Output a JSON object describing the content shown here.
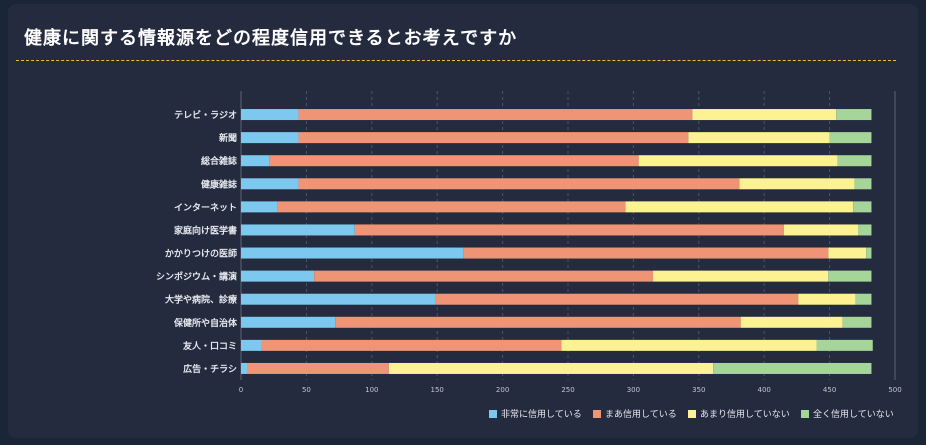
{
  "title": "健康に関する情報源をどの程度信用できるとお考えですか",
  "colors": {
    "panel": "#252b3f",
    "divider": "#e3c03c",
    "series": [
      "#7cc8ef",
      "#ef9576",
      "#fdf291",
      "#a6d59a"
    ]
  },
  "chart_data": {
    "type": "bar",
    "orientation": "horizontal",
    "stacked": true,
    "title": "健康に関する情報源をどの程度信用できるとお考えですか",
    "xlabel": "",
    "ylabel": "",
    "xlim": [
      0,
      500
    ],
    "x_ticks": [
      0,
      50,
      100,
      150,
      200,
      250,
      300,
      350,
      400,
      450,
      500
    ],
    "grid": "vertical-dashed",
    "legend_position": "bottom-right",
    "categories": [
      "テレビ・ラジオ",
      "新聞",
      "総合雑誌",
      "健康雑誌",
      "インターネット",
      "家庭向け医学書",
      "かかりつけの医師",
      "シンポジウム・講演",
      "大学や病院、診療",
      "保健所や自治体",
      "友人・口コミ",
      "広告・チラシ"
    ],
    "series": [
      {
        "name": "非常に信用している",
        "values": [
          44,
          44,
          22,
          44,
          28,
          87,
          170,
          56,
          149,
          72,
          16,
          5
        ]
      },
      {
        "name": "まあ信用している",
        "values": [
          301,
          298,
          282,
          337,
          266,
          328,
          279,
          259,
          277,
          310,
          229,
          108
        ]
      },
      {
        "name": "あまり信用していない",
        "values": [
          110,
          108,
          152,
          88,
          174,
          57,
          29,
          134,
          44,
          78,
          195,
          248
        ]
      },
      {
        "name": "全く信用していない",
        "values": [
          27,
          32,
          26,
          13,
          14,
          10,
          4,
          33,
          12,
          22,
          43,
          121
        ]
      }
    ]
  }
}
